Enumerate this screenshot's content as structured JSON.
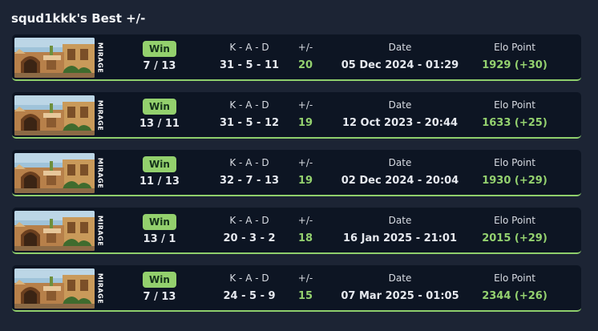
{
  "header": {
    "title": "squd1kkk's Best +/-"
  },
  "columns": {
    "kad": "K - A - D",
    "plus_minus": "+/-",
    "date": "Date",
    "elo": "Elo Point"
  },
  "colors": {
    "background": "#1c2434",
    "row_background": "#0d1523",
    "accent_green": "#93d06d"
  },
  "matches": [
    {
      "map": "MIRAGE",
      "result": "Win",
      "score": "7 / 13",
      "kad": "31 - 5 - 11",
      "plus_minus": "20",
      "date": "05 Dec 2024 - 01:29",
      "elo": "1929 (+30)"
    },
    {
      "map": "MIRAGE",
      "result": "Win",
      "score": "13 / 11",
      "kad": "31 - 5 - 12",
      "plus_minus": "19",
      "date": "12 Oct 2023 - 20:44",
      "elo": "1633 (+25)"
    },
    {
      "map": "MIRAGE",
      "result": "Win",
      "score": "11 / 13",
      "kad": "32 - 7 - 13",
      "plus_minus": "19",
      "date": "02 Dec 2024 - 20:04",
      "elo": "1930 (+29)"
    },
    {
      "map": "MIRAGE",
      "result": "Win",
      "score": "13 / 1",
      "kad": "20 - 3 - 2",
      "plus_minus": "18",
      "date": "16 Jan 2025 - 21:01",
      "elo": "2015 (+29)"
    },
    {
      "map": "MIRAGE",
      "result": "Win",
      "score": "7 / 13",
      "kad": "24 - 5 - 9",
      "plus_minus": "15",
      "date": "07 Mar 2025 - 01:05",
      "elo": "2344 (+26)"
    }
  ]
}
